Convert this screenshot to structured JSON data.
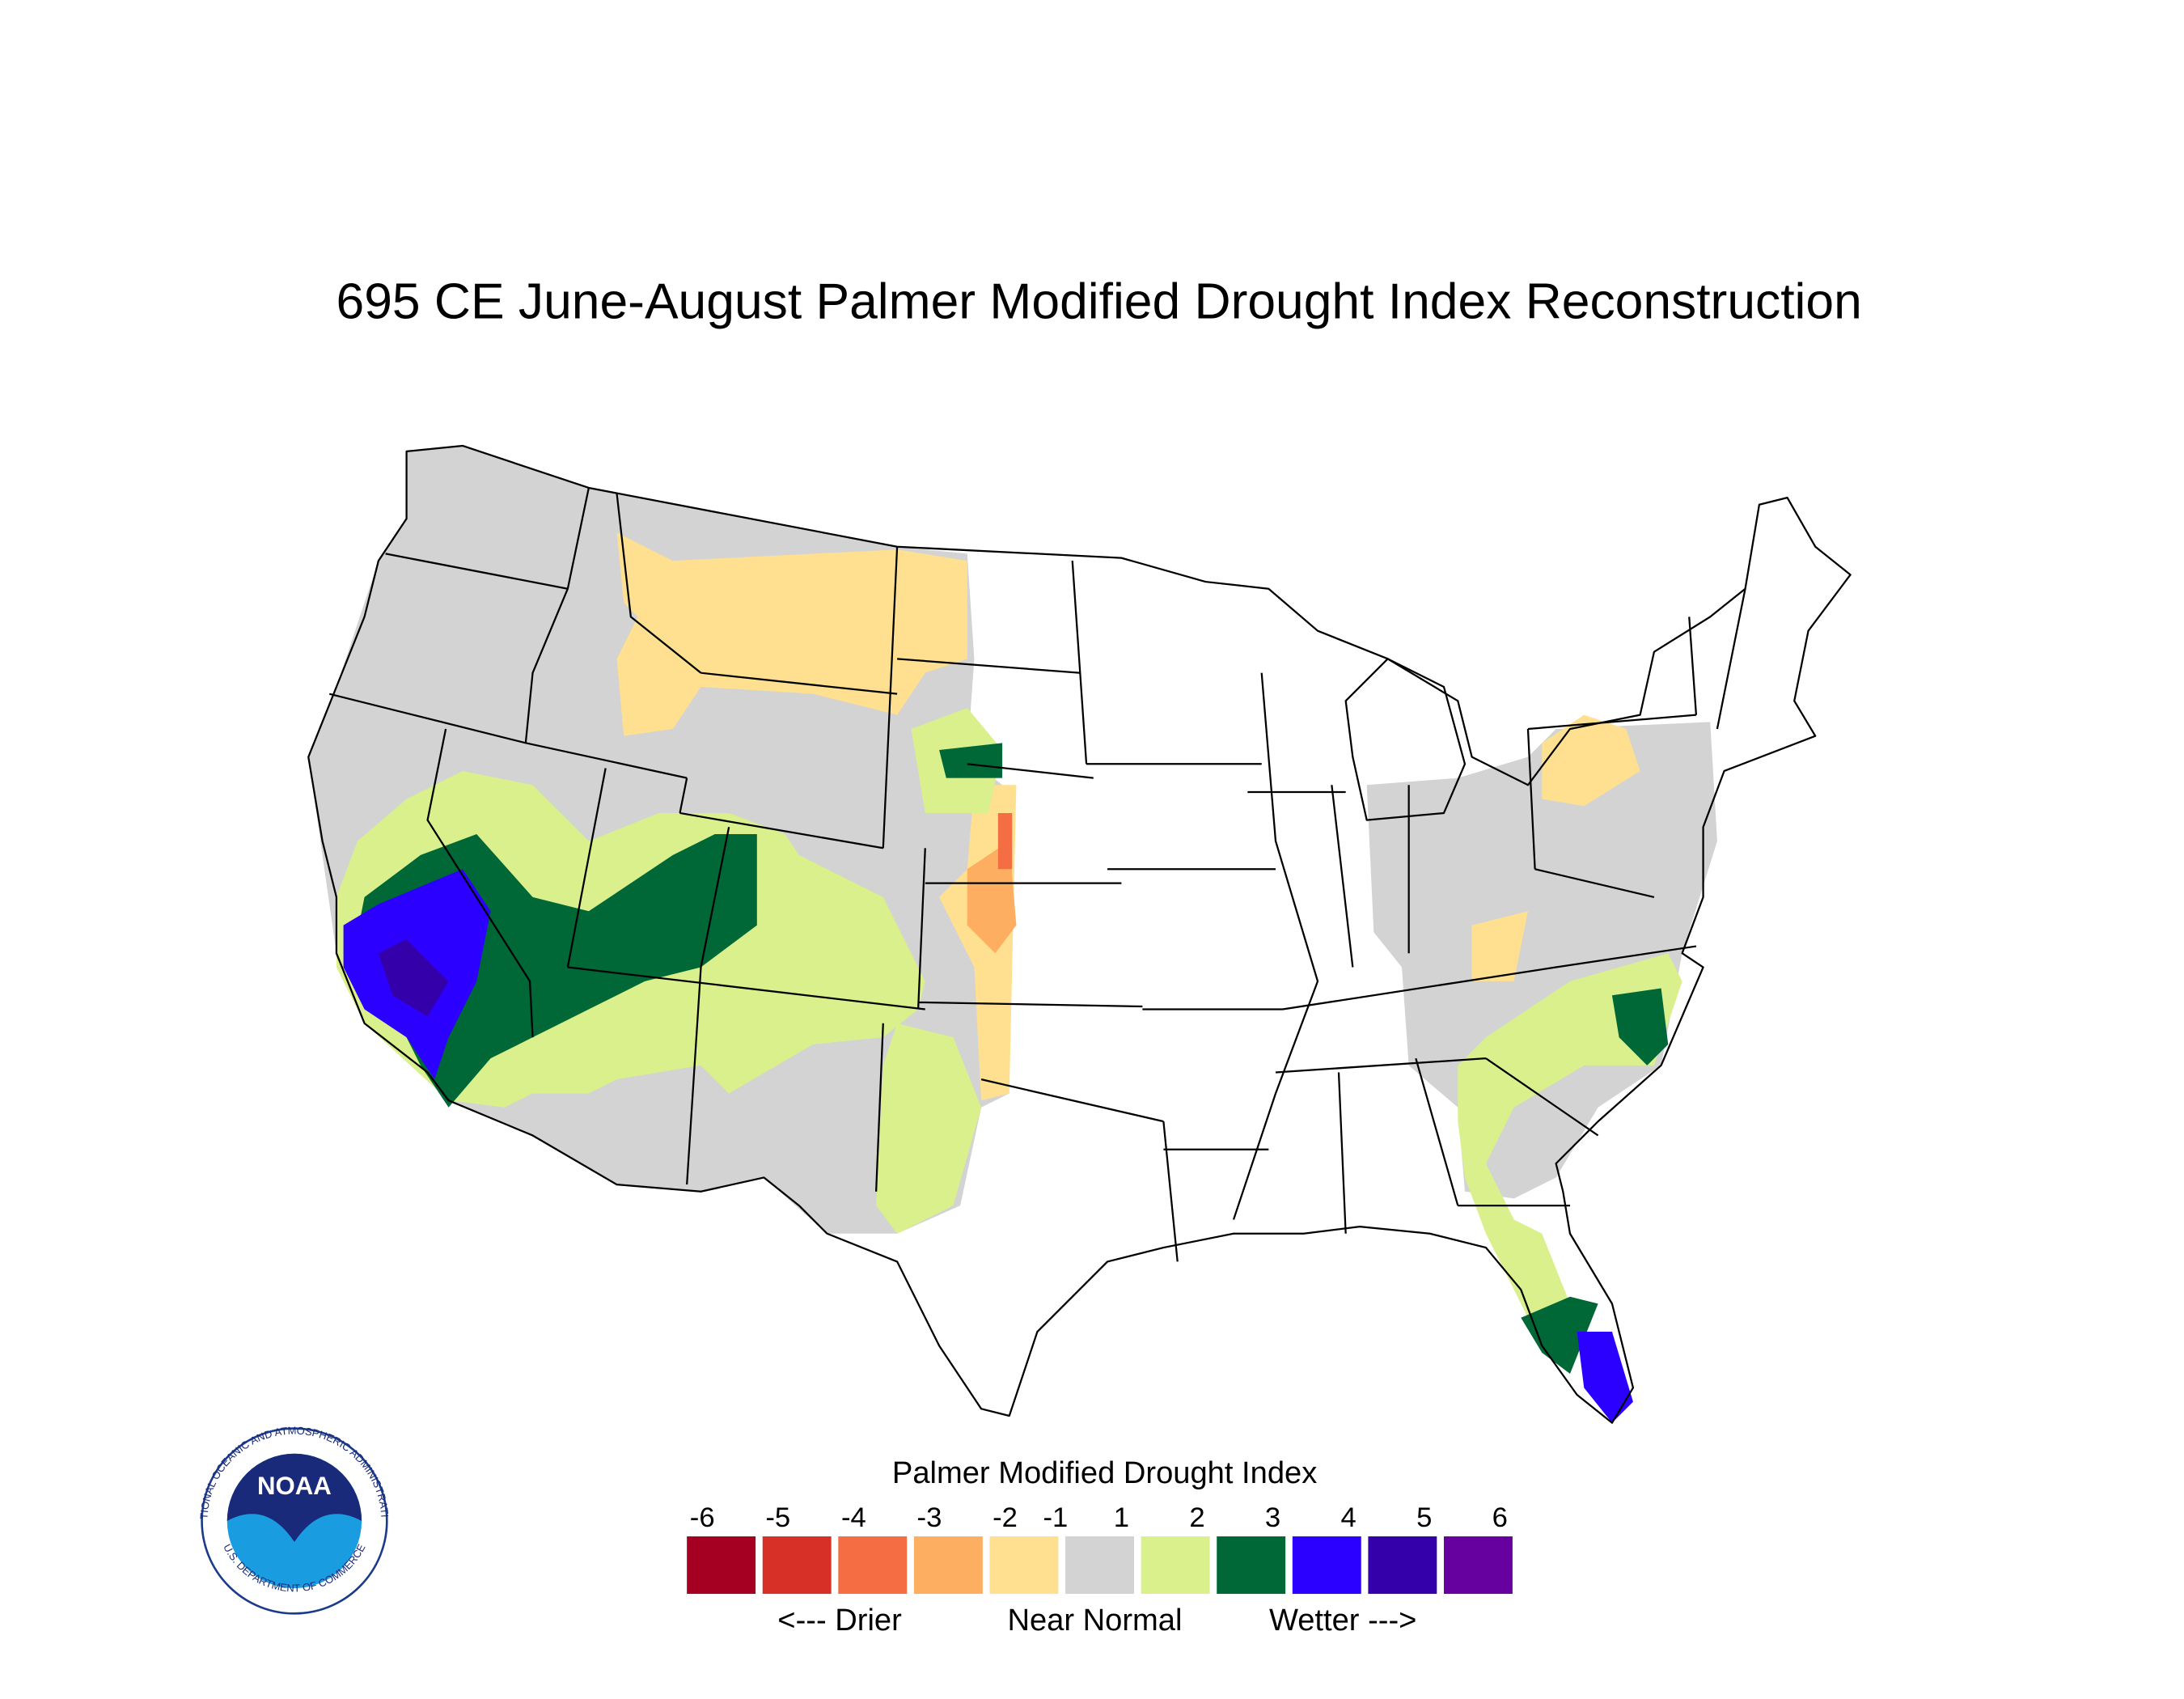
{
  "title": "695 CE  June-August  Palmer Modified Drought Index Reconstruction",
  "legend": {
    "title": "Palmer Modified Drought Index",
    "ticks": [
      -6,
      -5,
      -4,
      -3,
      -2,
      -1,
      1,
      2,
      3,
      4,
      5,
      6
    ],
    "colors": [
      "#a50021",
      "#d73027",
      "#f46d43",
      "#fdae61",
      "#fee090",
      "#d3d3d3",
      "#d9f08c",
      "#006837",
      "#2b00ff",
      "#3300aa",
      "#66009f"
    ],
    "descriptors": [
      "<--- Drier",
      "Near Normal",
      "Wetter --->"
    ]
  },
  "logo": {
    "name": "NOAA",
    "ring_top": "NATIONAL OCEANIC AND ATMOSPHERIC ADMINISTRATION",
    "ring_bottom": "U.S. DEPARTMENT OF COMMERCE"
  }
}
